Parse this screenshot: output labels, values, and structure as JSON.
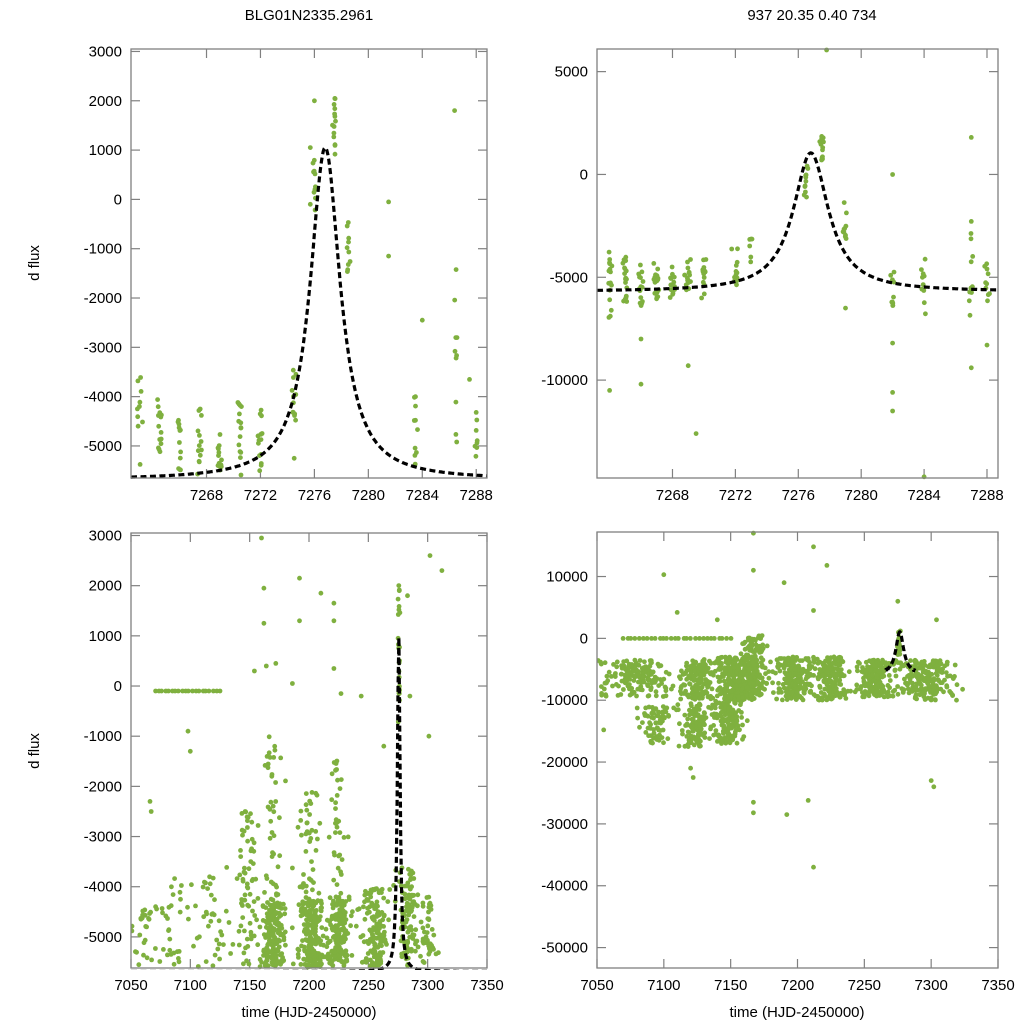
{
  "figure": {
    "title_left": "BLG01N2335.2961",
    "title_right": "937  20.35  0.40  734",
    "point_color": "#7fb03f",
    "model_color": "#000000"
  },
  "chart_data": [
    {
      "id": "top-left",
      "type": "scatter",
      "title": "BLG01N2335.2961",
      "xlabel": "",
      "ylabel": "d flux",
      "xlim": [
        7262.4,
        7288.8
      ],
      "ylim": [
        -5650,
        3050
      ],
      "xticks": [
        7268,
        7272,
        7276,
        7280,
        7284,
        7288
      ],
      "yticks": [
        3000,
        2000,
        1000,
        0,
        -1000,
        -2000,
        -3000,
        -4000,
        -5000
      ],
      "grid": false,
      "model": {
        "type": "microlensing",
        "t0": 7276.8,
        "baseline": -5690,
        "peak": 1050,
        "width": 1.35,
        "style": "dashed"
      },
      "clusters": [
        {
          "x": 7263.0,
          "spread_x": 0.15,
          "y_min": -5600,
          "y_max": -3600,
          "n": 10
        },
        {
          "x": 7264.5,
          "spread_x": 0.15,
          "y_min": -5600,
          "y_max": -4000,
          "n": 14
        },
        {
          "x": 7266.0,
          "spread_x": 0.15,
          "y_min": -5600,
          "y_max": -4350,
          "n": 12
        },
        {
          "x": 7267.5,
          "spread_x": 0.15,
          "y_min": -5600,
          "y_max": -4250,
          "n": 13
        },
        {
          "x": 7269.0,
          "spread_x": 0.15,
          "y_min": -5500,
          "y_max": -4700,
          "n": 14
        },
        {
          "x": 7270.5,
          "spread_x": 0.15,
          "y_min": -5600,
          "y_max": -4100,
          "n": 15
        },
        {
          "x": 7272.0,
          "spread_x": 0.15,
          "y_min": -5600,
          "y_max": -4200,
          "n": 14
        },
        {
          "x": 7274.5,
          "spread_x": 0.15,
          "y_min": -4600,
          "y_max": -3200,
          "n": 12
        },
        {
          "x": 7276.0,
          "spread_x": 0.1,
          "y_min": -500,
          "y_max": 800,
          "n": 10
        },
        {
          "x": 7277.5,
          "spread_x": 0.1,
          "y_min": 900,
          "y_max": 2100,
          "n": 14
        },
        {
          "x": 7278.5,
          "spread_x": 0.1,
          "y_min": -1700,
          "y_max": -300,
          "n": 10
        },
        {
          "x": 7283.5,
          "spread_x": 0.1,
          "y_min": -5600,
          "y_max": -3600,
          "n": 10
        },
        {
          "x": 7286.5,
          "spread_x": 0.1,
          "y_min": -5200,
          "y_max": -1400,
          "n": 10
        },
        {
          "x": 7288.0,
          "spread_x": 0.1,
          "y_min": -5400,
          "y_max": -4300,
          "n": 8
        }
      ],
      "outliers": [
        [
          7275.7,
          1050
        ],
        [
          7275.7,
          -100
        ],
        [
          7281.5,
          -1150
        ],
        [
          7281.5,
          -50
        ],
        [
          7276.0,
          2000
        ],
        [
          7286.4,
          1800
        ],
        [
          7284.0,
          -2450
        ],
        [
          7274.5,
          -5250
        ],
        [
          7287.5,
          -3650
        ]
      ]
    },
    {
      "id": "top-right",
      "type": "scatter",
      "title": "937  20.35  0.40  734",
      "xlabel": "",
      "ylabel": "",
      "xlim": [
        7263.2,
        7288.7
      ],
      "ylim": [
        -14760,
        6100
      ],
      "xticks": [
        7268,
        7272,
        7276,
        7280,
        7284,
        7288
      ],
      "yticks": [
        5000,
        0,
        -5000,
        -10000
      ],
      "grid": false,
      "model": {
        "type": "microlensing",
        "t0": 7276.8,
        "baseline": -5700,
        "peak": 1050,
        "width": 1.35,
        "style": "dashed"
      },
      "clusters": [
        {
          "x": 7264.0,
          "spread_x": 0.15,
          "y_min": -7000,
          "y_max": -3600,
          "n": 16
        },
        {
          "x": 7265.0,
          "spread_x": 0.15,
          "y_min": -6300,
          "y_max": -3800,
          "n": 18
        },
        {
          "x": 7266.0,
          "spread_x": 0.15,
          "y_min": -6600,
          "y_max": -4200,
          "n": 16
        },
        {
          "x": 7267.0,
          "spread_x": 0.15,
          "y_min": -6300,
          "y_max": -4300,
          "n": 16
        },
        {
          "x": 7268.0,
          "spread_x": 0.15,
          "y_min": -6000,
          "y_max": -4500,
          "n": 14
        },
        {
          "x": 7269.0,
          "spread_x": 0.15,
          "y_min": -6200,
          "y_max": -4000,
          "n": 16
        },
        {
          "x": 7270.0,
          "spread_x": 0.15,
          "y_min": -6300,
          "y_max": -4100,
          "n": 14
        },
        {
          "x": 7272.0,
          "spread_x": 0.15,
          "y_min": -5400,
          "y_max": -3400,
          "n": 12
        },
        {
          "x": 7273.0,
          "spread_x": 0.1,
          "y_min": -4600,
          "y_max": -3100,
          "n": 6
        },
        {
          "x": 7276.5,
          "spread_x": 0.1,
          "y_min": -1200,
          "y_max": 500,
          "n": 12
        },
        {
          "x": 7277.5,
          "spread_x": 0.1,
          "y_min": 700,
          "y_max": 1900,
          "n": 14
        },
        {
          "x": 7279.0,
          "spread_x": 0.1,
          "y_min": -3300,
          "y_max": -1200,
          "n": 10
        },
        {
          "x": 7282.0,
          "spread_x": 0.1,
          "y_min": -6400,
          "y_max": -4000,
          "n": 10
        },
        {
          "x": 7284.0,
          "spread_x": 0.1,
          "y_min": -6900,
          "y_max": -4000,
          "n": 10
        },
        {
          "x": 7287.0,
          "spread_x": 0.1,
          "y_min": -7000,
          "y_max": -2000,
          "n": 12
        },
        {
          "x": 7288.0,
          "spread_x": 0.1,
          "y_min": -6300,
          "y_max": -4300,
          "n": 10
        },
        {
          "x": 7289.0,
          "spread_x": 0.1,
          "y_min": -9500,
          "y_max": -6000,
          "n": 10
        }
      ],
      "outliers": [
        [
          7277.8,
          6050
        ],
        [
          7269.5,
          -12600
        ],
        [
          7264.0,
          -10500
        ],
        [
          7266.0,
          -10200
        ],
        [
          7266.0,
          -8000
        ],
        [
          7279.0,
          -6500
        ],
        [
          7282.0,
          -10600
        ],
        [
          7282.0,
          -11500
        ],
        [
          7282.0,
          -8200
        ],
        [
          7282.0,
          0
        ],
        [
          7287.0,
          -9400
        ],
        [
          7287.0,
          1800
        ],
        [
          7284.0,
          -14700
        ],
        [
          7288.0,
          -8300
        ],
        [
          7269.0,
          -9300
        ]
      ]
    },
    {
      "id": "bottom-left",
      "type": "scatter",
      "title": "",
      "xlabel": "time (HJD-2450000)",
      "ylabel": "d flux",
      "xlim": [
        7050,
        7350
      ],
      "ylim": [
        -5620,
        3050
      ],
      "xticks": [
        7050,
        7100,
        7150,
        7200,
        7250,
        7300,
        7350
      ],
      "yticks": [
        3000,
        2000,
        1000,
        0,
        -1000,
        -2000,
        -3000,
        -4000,
        -5000
      ],
      "grid": false,
      "model": {
        "type": "microlensing",
        "t0": 7275.6,
        "baseline": -5690,
        "peak": 1050,
        "width": 1.35,
        "style": "dashed"
      },
      "flat_segment": {
        "x_start": 7070,
        "x_end": 7125,
        "y": -100,
        "n": 20
      },
      "clusters": [
        {
          "x": 7062,
          "spread_x": 12,
          "y_min": -5600,
          "y_max": -4300,
          "n": 30
        },
        {
          "x": 7090,
          "spread_x": 14,
          "y_min": -5600,
          "y_max": -3800,
          "n": 30
        },
        {
          "x": 7120,
          "spread_x": 12,
          "y_min": -5600,
          "y_max": -3800,
          "n": 35
        },
        {
          "x": 7148,
          "spread_x": 8,
          "y_min": -5600,
          "y_max": -2500,
          "n": 70
        },
        {
          "x": 7170,
          "spread_x": 8,
          "y_min": -5600,
          "y_max": -4300,
          "n": 180
        },
        {
          "x": 7170,
          "spread_x": 6,
          "y_min": -4500,
          "y_max": -1000,
          "n": 45
        },
        {
          "x": 7202,
          "spread_x": 9,
          "y_min": -5600,
          "y_max": -4200,
          "n": 200
        },
        {
          "x": 7200,
          "spread_x": 8,
          "y_min": -4500,
          "y_max": -1800,
          "n": 45
        },
        {
          "x": 7225,
          "spread_x": 8,
          "y_min": -5600,
          "y_max": -4200,
          "n": 160
        },
        {
          "x": 7225,
          "spread_x": 6,
          "y_min": -4300,
          "y_max": -1400,
          "n": 35
        },
        {
          "x": 7256,
          "spread_x": 9,
          "y_min": -5600,
          "y_max": -4000,
          "n": 150
        },
        {
          "x": 7283,
          "spread_x": 7,
          "y_min": -5600,
          "y_max": -3600,
          "n": 110
        },
        {
          "x": 7300,
          "spread_x": 7,
          "y_min": -5600,
          "y_max": -4200,
          "n": 40
        },
        {
          "x": 7276,
          "spread_x": 1,
          "y_min": -1000,
          "y_max": 2100,
          "n": 25
        }
      ],
      "outliers": [
        [
          7160,
          2950
        ],
        [
          7162,
          1950
        ],
        [
          7162,
          1250
        ],
        [
          7192,
          2150
        ],
        [
          7192,
          1300
        ],
        [
          7210,
          1850
        ],
        [
          7221,
          1650
        ],
        [
          7221,
          1300
        ],
        [
          7221,
          350
        ],
        [
          7302,
          2600
        ],
        [
          7312,
          2300
        ],
        [
          7164,
          400
        ],
        [
          7172,
          450
        ],
        [
          7186,
          50
        ],
        [
          7154,
          300
        ],
        [
          7227,
          -150
        ],
        [
          7244,
          -200
        ],
        [
          7283,
          1800
        ],
        [
          7301,
          -1000
        ],
        [
          7098,
          -900
        ],
        [
          7100,
          -1300
        ],
        [
          7285,
          -200
        ],
        [
          7263,
          -1200
        ],
        [
          7066,
          -2300
        ],
        [
          7067,
          -2500
        ]
      ]
    },
    {
      "id": "bottom-right",
      "type": "scatter",
      "title": "",
      "xlabel": "time (HJD-2450000)",
      "ylabel": "",
      "xlim": [
        7050,
        7350
      ],
      "ylim": [
        -53300,
        17200
      ],
      "xticks": [
        7050,
        7100,
        7150,
        7200,
        7250,
        7300,
        7350
      ],
      "yticks": [
        10000,
        0,
        -10000,
        -20000,
        -30000,
        -40000,
        -50000
      ],
      "grid": false,
      "model": {
        "type": "microlensing",
        "t0": 7276.5,
        "baseline": -5800,
        "peak": 1050,
        "width": 3.5,
        "x_range": [
          7266,
          7288
        ],
        "style": "dashed"
      },
      "flat_segment": {
        "x_start": 7070,
        "x_end": 7150,
        "y": 0,
        "n": 28
      },
      "clusters": [
        {
          "x": 7078,
          "spread_x": 20,
          "y_min": -9500,
          "y_max": -3500,
          "n": 160
        },
        {
          "x": 7095,
          "spread_x": 10,
          "y_min": -17000,
          "y_max": -11000,
          "n": 70
        },
        {
          "x": 7125,
          "spread_x": 10,
          "y_min": -10000,
          "y_max": -3500,
          "n": 170
        },
        {
          "x": 7123,
          "spread_x": 9,
          "y_min": -17500,
          "y_max": -10500,
          "n": 120
        },
        {
          "x": 7155,
          "spread_x": 14,
          "y_min": -10000,
          "y_max": -3000,
          "n": 320
        },
        {
          "x": 7148,
          "spread_x": 10,
          "y_min": -17000,
          "y_max": -10000,
          "n": 130
        },
        {
          "x": 7168,
          "spread_x": 8,
          "y_min": -9500,
          "y_max": 500,
          "n": 120
        },
        {
          "x": 7198,
          "spread_x": 12,
          "y_min": -10000,
          "y_max": -3000,
          "n": 200
        },
        {
          "x": 7226,
          "spread_x": 10,
          "y_min": -10000,
          "y_max": -3000,
          "n": 170
        },
        {
          "x": 7258,
          "spread_x": 12,
          "y_min": -9500,
          "y_max": -3500,
          "n": 180
        },
        {
          "x": 7296,
          "spread_x": 16,
          "y_min": -10000,
          "y_max": -3500,
          "n": 200
        },
        {
          "x": 7276,
          "spread_x": 1.5,
          "y_min": -3000,
          "y_max": 1500,
          "n": 18
        }
      ],
      "outliers": [
        [
          7100,
          10300
        ],
        [
          7167,
          17000
        ],
        [
          7167,
          11000
        ],
        [
          7212,
          14800
        ],
        [
          7222,
          11800
        ],
        [
          7110,
          4200
        ],
        [
          7140,
          3000
        ],
        [
          7190,
          9000
        ],
        [
          7212,
          4500
        ],
        [
          7275,
          6000
        ],
        [
          7304,
          3000
        ],
        [
          7120,
          -21000
        ],
        [
          7122,
          -22500
        ],
        [
          7167,
          -28200
        ],
        [
          7167,
          -26500
        ],
        [
          7192,
          -28500
        ],
        [
          7208,
          -26200
        ],
        [
          7212,
          -37000
        ],
        [
          7300,
          -23000
        ],
        [
          7302,
          -24000
        ],
        [
          7055,
          -14800
        ],
        [
          7196,
          -4000
        ]
      ]
    }
  ]
}
